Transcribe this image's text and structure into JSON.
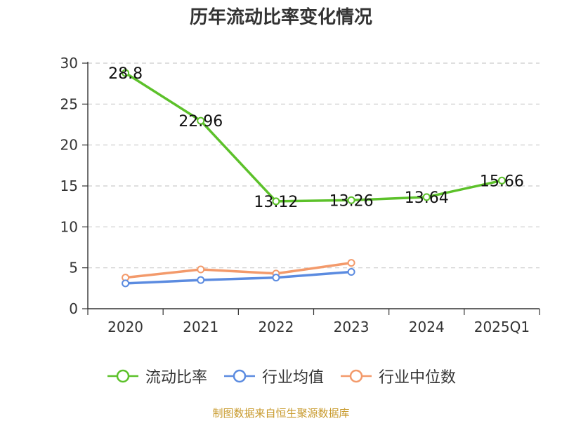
{
  "chart_data": {
    "type": "line",
    "title": "历年流动比率变化情况",
    "categories": [
      "2020",
      "2021",
      "2022",
      "2023",
      "2024",
      "2025Q1"
    ],
    "ylim": [
      0,
      30
    ],
    "yticks": [
      0,
      5,
      10,
      15,
      20,
      25,
      30
    ],
    "grid": true,
    "legend_position": "bottom",
    "series": [
      {
        "name": "流动比率",
        "color": "#5cc12a",
        "values": [
          28.8,
          22.96,
          13.12,
          13.26,
          13.64,
          15.66
        ],
        "labels": [
          "28.8",
          "22.96",
          "13.12",
          "13.26",
          "13.64",
          "15.66"
        ]
      },
      {
        "name": "行业均值",
        "color": "#5b8be0",
        "values": [
          3.1,
          3.5,
          3.8,
          4.5,
          null,
          null
        ]
      },
      {
        "name": "行业中位数",
        "color": "#f39a6b",
        "values": [
          3.8,
          4.8,
          4.3,
          5.6,
          null,
          null
        ]
      }
    ]
  },
  "source": "制图数据来自恒生聚源数据库"
}
